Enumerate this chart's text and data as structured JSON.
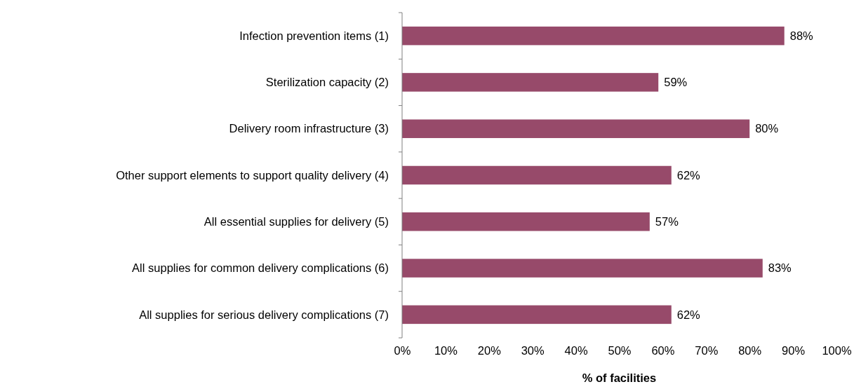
{
  "chart_data": {
    "type": "bar",
    "orientation": "horizontal",
    "xlabel": "% of facilities",
    "categories": [
      "Infection prevention items (1)",
      "Sterilization capacity (2)",
      "Delivery room infrastructure (3)",
      "Other support elements to support quality delivery (4)",
      "All essential supplies for delivery (5)",
      "All supplies for common delivery complications (6)",
      "All supplies for serious delivery complications (7)"
    ],
    "values": [
      88,
      59,
      80,
      62,
      57,
      83,
      62
    ],
    "value_labels": [
      "88%",
      "59%",
      "80%",
      "62%",
      "57%",
      "83%",
      "62%"
    ],
    "color": "#974a6a",
    "xlim": [
      0,
      100
    ],
    "xticks": [
      {
        "value": 0,
        "label": "0%"
      },
      {
        "value": 10,
        "label": "10%"
      },
      {
        "value": 20,
        "label": "20%"
      },
      {
        "value": 30,
        "label": "30%"
      },
      {
        "value": 40,
        "label": "40%"
      },
      {
        "value": 50,
        "label": "50%"
      },
      {
        "value": 60,
        "label": "60%"
      },
      {
        "value": 70,
        "label": "70%"
      },
      {
        "value": 80,
        "label": "80%"
      },
      {
        "value": 90,
        "label": "90%"
      },
      {
        "value": 100,
        "label": "100%"
      }
    ],
    "grid": false
  }
}
